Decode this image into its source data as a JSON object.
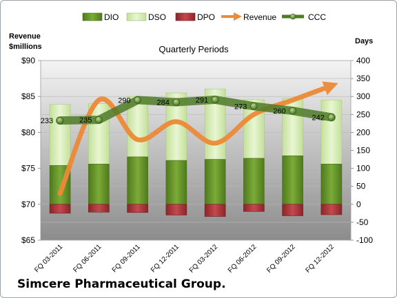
{
  "chart_data": {
    "type": "bar",
    "title": "Quarterly Periods",
    "y_left_label_line1": "Revenue",
    "y_left_label_line2": "$millions",
    "y_right_label": "Days",
    "left_ticks": [
      "$65",
      "$70",
      "$75",
      "$80",
      "$85",
      "$90"
    ],
    "left_range": [
      65,
      90
    ],
    "right_ticks": [
      "-100",
      "-50",
      "0",
      "50",
      "100",
      "150",
      "200",
      "250",
      "300",
      "350",
      "400"
    ],
    "right_range": [
      -100,
      400
    ],
    "categories": [
      "FQ 03-2011",
      "FQ 06-2011",
      "FQ 09-2011",
      "FQ 12-2011",
      "FQ 03-2012",
      "FQ 06-2012",
      "FQ 09-2012",
      "FQ 12-2012"
    ],
    "series": [
      {
        "name": "DIO",
        "axis": "right",
        "values": [
          108,
          112,
          132,
          122,
          125,
          128,
          135,
          112
        ]
      },
      {
        "name": "DSO",
        "axis": "right",
        "values": [
          170,
          168,
          168,
          188,
          196,
          163,
          160,
          178
        ]
      },
      {
        "name": "DPO",
        "axis": "right",
        "values": [
          -25,
          -22,
          -23,
          -30,
          -34,
          -20,
          -32,
          -29
        ]
      },
      {
        "name": "Revenue",
        "axis": "left",
        "values": [
          71.5,
          84.5,
          79.0,
          81.5,
          78.5,
          82.5,
          84.5,
          86.5
        ]
      },
      {
        "name": "CCC",
        "axis": "right",
        "values": [
          233,
          235,
          290,
          284,
          291,
          273,
          260,
          242
        ]
      }
    ],
    "ccc_labels": [
      "233",
      "235",
      "290",
      "284",
      "291",
      "273",
      "260",
      "242"
    ],
    "legend_position": "top",
    "grid": true,
    "colors": {
      "dio": "#6a9a2c",
      "dso": "#d4ecb0",
      "dpo": "#b03a3e",
      "revenue": "#ec8a37",
      "ccc": "#4f7a28"
    }
  },
  "footer": "Simcere Pharmaceutical Group."
}
